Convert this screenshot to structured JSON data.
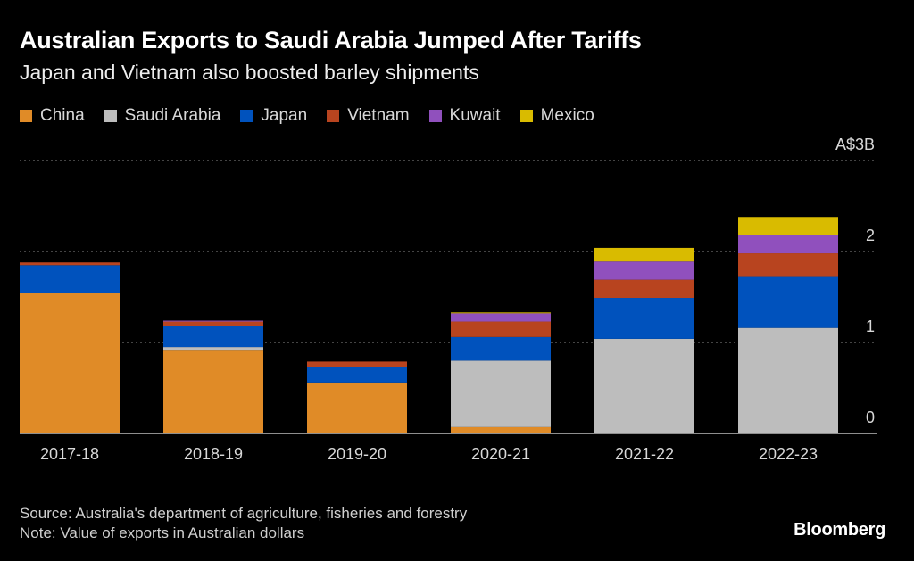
{
  "header": {
    "title": "Australian Exports to Saudi Arabia Jumped After Tariffs",
    "subtitle": "Japan and Vietnam also boosted barley shipments"
  },
  "legend": [
    {
      "name": "China",
      "color": "#e08b27"
    },
    {
      "name": "Saudi Arabia",
      "color": "#bdbdbd"
    },
    {
      "name": "Japan",
      "color": "#0052bd"
    },
    {
      "name": "Vietnam",
      "color": "#b8441f"
    },
    {
      "name": "Kuwait",
      "color": "#9050bd"
    },
    {
      "name": "Mexico",
      "color": "#d9bb00"
    }
  ],
  "footer": {
    "source": "Source: Australia's department of agriculture, fisheries and forestry",
    "note": "Note: Value of exports in Australian dollars",
    "brand": "Bloomberg"
  },
  "chart_data": {
    "type": "bar",
    "stacked": true,
    "title": "Australian Exports to Saudi Arabia Jumped After Tariffs",
    "subtitle": "Japan and Vietnam also boosted barley shipments",
    "xlabel": "",
    "ylabel": "A$B",
    "unit_label": "A$3B",
    "ylim": [
      0,
      3
    ],
    "yticks": [
      0,
      1,
      2,
      3
    ],
    "ytick_labels": [
      "0",
      "1",
      "2",
      "A$3B"
    ],
    "grid": true,
    "legend_position": "top-left",
    "categories": [
      "2017-18",
      "2018-19",
      "2019-20",
      "2020-21",
      "2021-22",
      "2022-23"
    ],
    "series": [
      {
        "name": "China",
        "color": "#e08b27",
        "values": [
          1.54,
          0.92,
          0.56,
          0.07,
          0,
          0
        ]
      },
      {
        "name": "Saudi Arabia",
        "color": "#bdbdbd",
        "values": [
          0,
          0.03,
          0,
          0.73,
          1.04,
          1.16
        ]
      },
      {
        "name": "Japan",
        "color": "#0052bd",
        "values": [
          0.31,
          0.23,
          0.17,
          0.26,
          0.45,
          0.56
        ]
      },
      {
        "name": "Vietnam",
        "color": "#b8441f",
        "values": [
          0.03,
          0.05,
          0.06,
          0.17,
          0.2,
          0.26
        ]
      },
      {
        "name": "Kuwait",
        "color": "#9050bd",
        "values": [
          0,
          0.01,
          0,
          0.09,
          0.2,
          0.2
        ]
      },
      {
        "name": "Mexico",
        "color": "#d9bb00",
        "values": [
          0,
          0,
          0,
          0.01,
          0.15,
          0.2
        ]
      }
    ]
  }
}
